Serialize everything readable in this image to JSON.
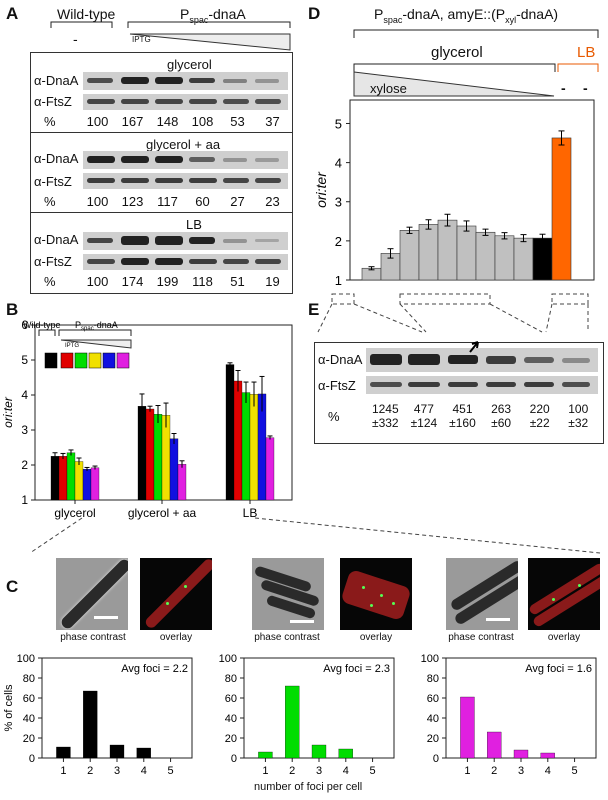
{
  "panels": {
    "A": "A",
    "B": "B",
    "C": "C",
    "D": "D",
    "E": "E"
  },
  "panelA": {
    "header_wt": "Wild-type",
    "header_mut_prefix": "P",
    "header_mut_sub": "spac",
    "header_mut_suffix": "-dnaA",
    "wt_dash": "-",
    "iptg": "IPTG",
    "row_dnaA": "α-DnaA",
    "row_ftsZ": "α-FtsZ",
    "row_pct": "%",
    "blocks": [
      {
        "title": "glycerol",
        "values": [
          "100",
          "167",
          "148",
          "108",
          "53",
          "37"
        ]
      },
      {
        "title": "glycerol + aa",
        "values": [
          "100",
          "123",
          "117",
          "60",
          "27",
          "23"
        ]
      },
      {
        "title": "LB",
        "values": [
          "100",
          "174",
          "199",
          "118",
          "51",
          "19"
        ]
      }
    ]
  },
  "panelB": {
    "ylabel": "ori:ter",
    "inset_wt": "Wild-type",
    "inset_mut": "P",
    "inset_mut_sub": "spac",
    "inset_mut_suffix": "-dnaA",
    "inset_iptg": "IPTG"
  },
  "panelC": {
    "cap_phase": "phase contrast",
    "cap_overlay": "overlay",
    "xlabel": "number of foci per cell",
    "ylabel": "% of cells",
    "avg": [
      "Avg foci = 2.2",
      "Avg foci = 2.3",
      "Avg foci = 1.6"
    ]
  },
  "panelD": {
    "header_prefix": "P",
    "header_sub": "spac",
    "header_mid": "-dnaA, amyE::(P",
    "header_sub2": "xyl",
    "header_suffix": "-dnaA)",
    "glycerol": "glycerol",
    "lb": "LB",
    "xylose": "xylose",
    "dash1": "-",
    "dash2": "-",
    "ylabel": "ori:ter"
  },
  "panelE": {
    "row_dnaA": "α-DnaA",
    "row_ftsZ": "α-FtsZ",
    "row_pct": "%",
    "values": [
      "1245",
      "477",
      "451",
      "263",
      "220",
      "100"
    ],
    "errors": [
      "±332",
      "±124",
      "±160",
      "±60",
      "±22",
      "±32"
    ]
  },
  "chart_data": [
    {
      "id": "B",
      "type": "bar",
      "ylabel": "ori:ter",
      "ylim": [
        1,
        6
      ],
      "yticks": [
        "1",
        "2",
        "3",
        "4",
        "5",
        "6"
      ],
      "categories": [
        "glycerol",
        "glycerol + aa",
        "LB"
      ],
      "colors": [
        "#000000",
        "#e00000",
        "#00dd00",
        "#f0e000",
        "#1010e0",
        "#e020e0"
      ],
      "series": [
        {
          "values": [
            2.25,
            3.68,
            4.87
          ],
          "errors": [
            0.1,
            0.35,
            0.05
          ]
        },
        {
          "values": [
            2.25,
            3.6,
            4.4
          ],
          "errors": [
            0.08,
            0.08,
            0.3
          ]
        },
        {
          "values": [
            2.35,
            3.45,
            4.07
          ],
          "errors": [
            0.08,
            0.25,
            0.3
          ]
        },
        {
          "values": [
            2.1,
            3.42,
            4.02
          ],
          "errors": [
            0.1,
            0.35,
            0.35
          ]
        },
        {
          "values": [
            1.88,
            2.75,
            4.03
          ],
          "errors": [
            0.05,
            0.15,
            0.5
          ]
        },
        {
          "values": [
            1.92,
            2.02,
            2.78
          ],
          "errors": [
            0.05,
            0.1,
            0.05
          ]
        }
      ]
    },
    {
      "id": "C1",
      "type": "bar",
      "color": "#000000",
      "categories": [
        "1",
        "2",
        "3",
        "4",
        "5"
      ],
      "values": [
        11,
        67,
        13,
        10,
        0
      ],
      "ylim": [
        0,
        100
      ],
      "yticks": [
        "0",
        "20",
        "40",
        "60",
        "80",
        "100"
      ],
      "ylabel": "% of cells",
      "annotation": "Avg foci = 2.2"
    },
    {
      "id": "C2",
      "type": "bar",
      "color": "#00dd00",
      "categories": [
        "1",
        "2",
        "3",
        "4",
        "5"
      ],
      "values": [
        6,
        72,
        13,
        9,
        0
      ],
      "ylim": [
        0,
        100
      ],
      "yticks": [
        "0",
        "20",
        "40",
        "60",
        "80",
        "100"
      ],
      "xlabel": "number of foci per cell",
      "annotation": "Avg foci = 2.3"
    },
    {
      "id": "C3",
      "type": "bar",
      "color": "#e020e0",
      "categories": [
        "1",
        "2",
        "3",
        "4",
        "5"
      ],
      "values": [
        61,
        26,
        8,
        5,
        0
      ],
      "ylim": [
        0,
        100
      ],
      "yticks": [
        "0",
        "20",
        "40",
        "60",
        "80",
        "100"
      ],
      "annotation": "Avg foci = 1.6"
    },
    {
      "id": "D",
      "type": "bar",
      "ylabel": "ori:ter",
      "ylim": [
        1,
        5.6
      ],
      "yticks": [
        "1",
        "2",
        "3",
        "4",
        "5"
      ],
      "values": [
        1.3,
        1.68,
        2.27,
        2.42,
        2.53,
        2.38,
        2.22,
        2.13,
        2.07,
        2.07,
        4.63
      ],
      "errors": [
        0.04,
        0.12,
        0.08,
        0.12,
        0.15,
        0.13,
        0.08,
        0.08,
        0.09,
        0.1,
        0.18
      ],
      "colors": [
        "#c0c0c0",
        "#c0c0c0",
        "#c0c0c0",
        "#c0c0c0",
        "#c0c0c0",
        "#c0c0c0",
        "#c0c0c0",
        "#c0c0c0",
        "#c0c0c0",
        "#000000",
        "#ff6600"
      ]
    }
  ]
}
